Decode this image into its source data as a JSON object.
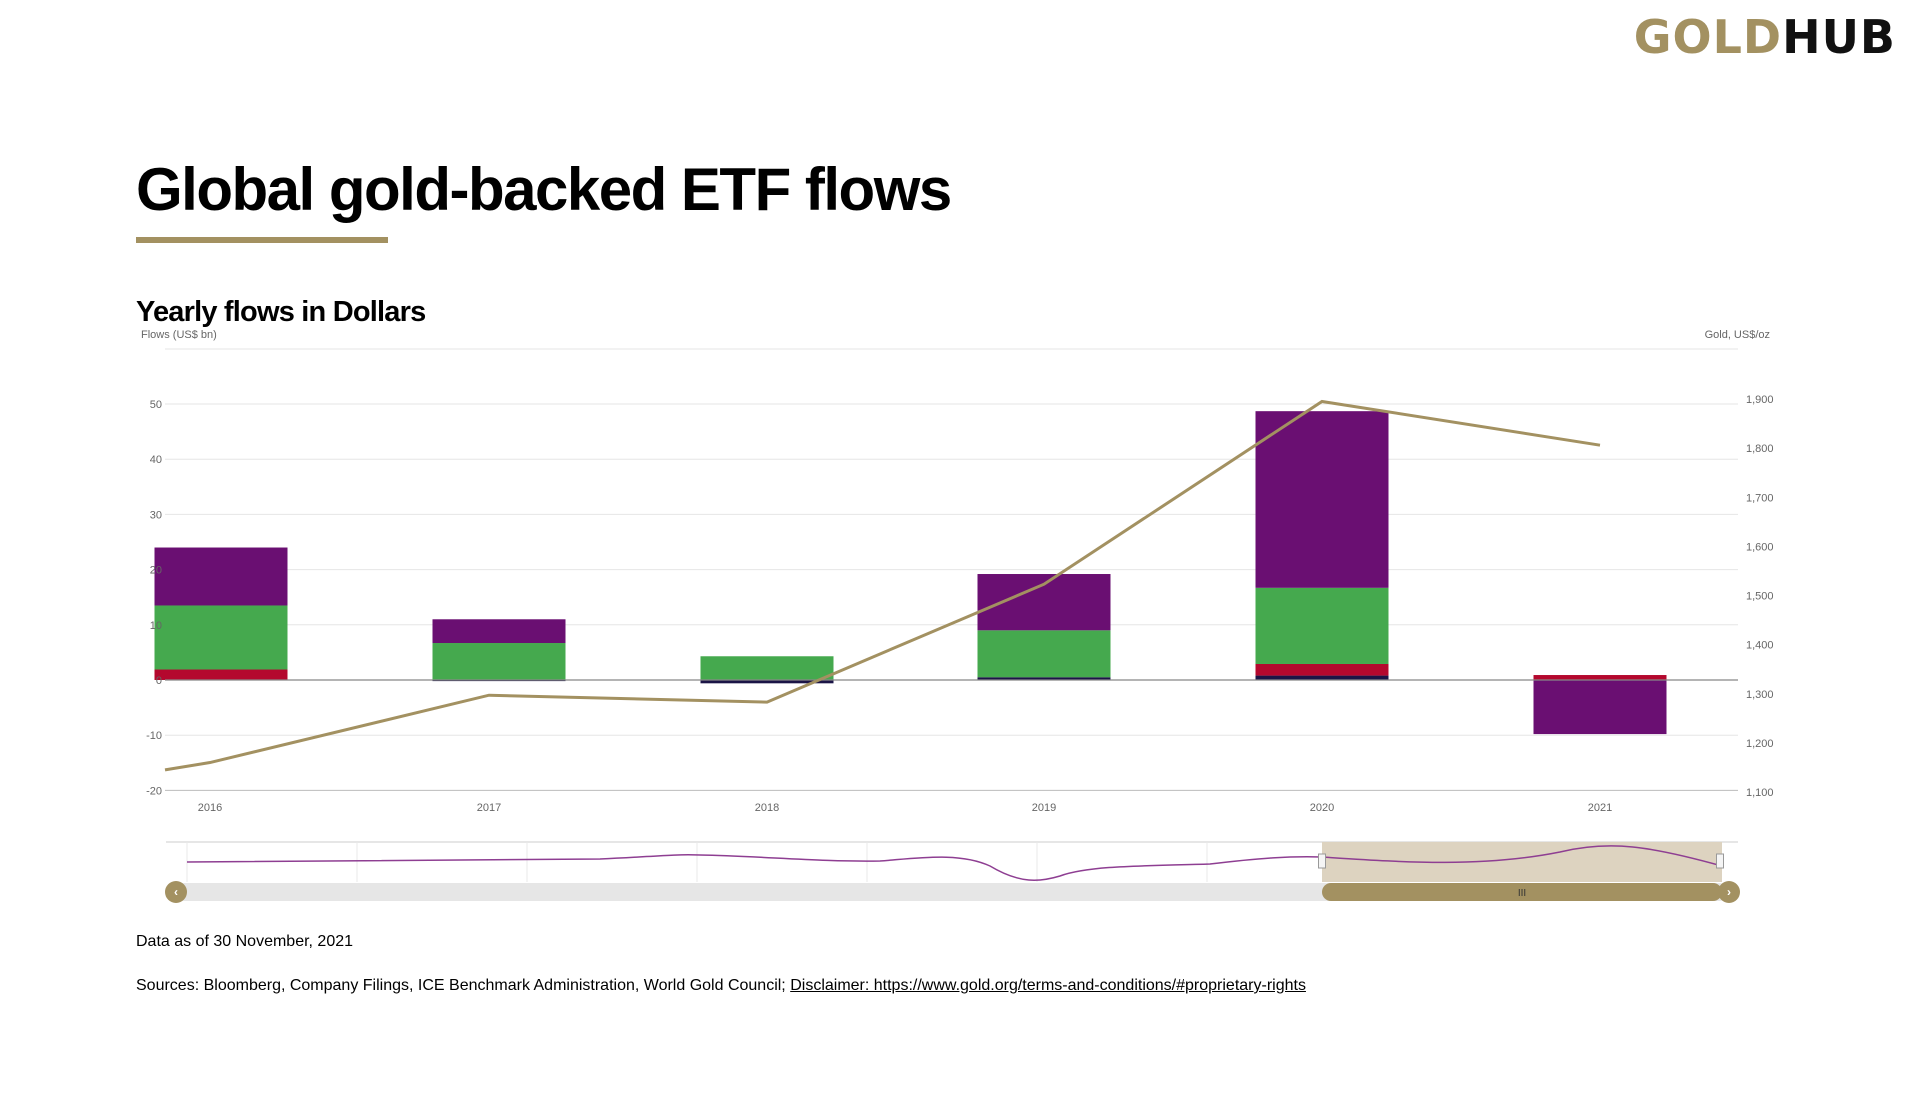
{
  "logo": {
    "part1": "GOLD",
    "part2": "HUB"
  },
  "page": {
    "title": "Global gold-backed ETF flows",
    "subtitle": "Yearly flows in Dollars"
  },
  "colors": {
    "accent": "#A39161",
    "purple": "#6A0F72",
    "green": "#45A94E",
    "red": "#B4082E",
    "navy": "#1B1446",
    "navigator_mask": "#DDD3C0",
    "navigator_line": "#8E3E92"
  },
  "chart_data": {
    "type": "bar",
    "stacked": true,
    "x": [
      "2016",
      "2017",
      "2018",
      "2019",
      "2020",
      "2021"
    ],
    "series": [
      {
        "values": [
          0.0,
          -0.2,
          -0.6,
          0.5,
          0.8,
          0.0
        ],
        "color": "#1B1446"
      },
      {
        "values": [
          1.9,
          0.0,
          0.0,
          0.0,
          2.1,
          0.9
        ],
        "color": "#B4082E"
      },
      {
        "values": [
          11.6,
          6.7,
          4.3,
          8.5,
          13.8,
          0.0
        ],
        "color": "#45A94E"
      },
      {
        "values": [
          10.5,
          4.3,
          0.0,
          10.2,
          32.0,
          -9.8
        ],
        "color": "#6A0F72"
      }
    ],
    "line": {
      "axis": "right",
      "color": "#A39161",
      "points": [
        {
          "x": "2016",
          "y": 1160
        },
        {
          "x": "2017",
          "y": 1297
        },
        {
          "x": "2018",
          "y": 1283
        },
        {
          "x": "2019",
          "y": 1523
        },
        {
          "x": "2020",
          "y": 1895
        },
        {
          "x": "2021",
          "y": 1806
        }
      ]
    },
    "y_left": {
      "label": "Flows (US$ bn)",
      "ticks": [
        "-20",
        "-10",
        "0",
        "10",
        "20",
        "30",
        "40",
        "50"
      ],
      "range": [
        -20,
        60
      ]
    },
    "y_right": {
      "label": "Gold, US$/oz",
      "ticks": [
        "1,100",
        "1,200",
        "1,300",
        "1,400",
        "1,500",
        "1,600",
        "1,700",
        "1,800",
        "1,900"
      ],
      "range": [
        1100,
        1900
      ]
    },
    "x_ticks": [
      "2016",
      "2017",
      "2018",
      "2019",
      "2020",
      "2021"
    ],
    "grid": true,
    "navigator": {
      "selected_range": [
        "2020",
        "2021"
      ],
      "handle_label": "III"
    }
  },
  "footer": {
    "date": "Data as of 30 November, 2021",
    "sources": "Sources: Bloomberg, Company Filings, ICE Benchmark Administration, World Gold Council;",
    "disclaimer": "Disclaimer: https://www.gold.org/terms-and-conditions/#proprietary-rights"
  }
}
